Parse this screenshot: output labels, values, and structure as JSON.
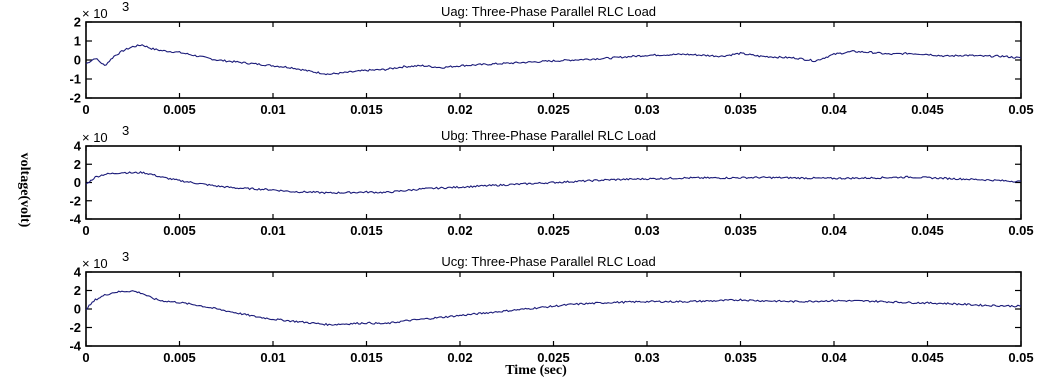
{
  "colors": {
    "signal": "#1c1c7a",
    "axis": "#000000",
    "background": "#ffffff"
  },
  "xlabel": "Time (sec)",
  "ylabel": "voltage(volt)",
  "chart_data": [
    {
      "type": "line",
      "title": "Uag: Three-Phase Parallel RLC Load",
      "multiplier_label": "× 10",
      "multiplier_exp": "3",
      "xlim": [
        0,
        0.05
      ],
      "ylim": [
        -2,
        2
      ],
      "x_ticks": [
        "0",
        "0.005",
        "0.01",
        "0.015",
        "0.02",
        "0.025",
        "0.03",
        "0.035",
        "0.04",
        "0.045",
        "0.05"
      ],
      "y_ticks": [
        "2",
        "1",
        "0",
        "-1",
        "-2"
      ],
      "y_tick_values": [
        2,
        1,
        0,
        -1,
        -2
      ],
      "series": [
        {
          "x": [
            0,
            0.0005,
            0.001,
            0.0015,
            0.002,
            0.0025,
            0.003,
            0.0035,
            0.004,
            0.005,
            0.006,
            0.007,
            0.008,
            0.009,
            0.01,
            0.011,
            0.012,
            0.013,
            0.014,
            0.015,
            0.016,
            0.017,
            0.018,
            0.019,
            0.02,
            0.022,
            0.024,
            0.026,
            0.028,
            0.03,
            0.032,
            0.034,
            0.035,
            0.036,
            0.038,
            0.039,
            0.04,
            0.041,
            0.042,
            0.043,
            0.044,
            0.045,
            0.046,
            0.047,
            0.048,
            0.049,
            0.05
          ],
          "y": [
            -0.2,
            0.1,
            -0.3,
            0.2,
            0.5,
            0.7,
            0.8,
            0.6,
            0.5,
            0.4,
            0.2,
            0.0,
            -0.1,
            -0.2,
            -0.3,
            -0.4,
            -0.6,
            -0.75,
            -0.65,
            -0.55,
            -0.5,
            -0.35,
            -0.3,
            -0.4,
            -0.3,
            -0.2,
            -0.1,
            0.0,
            0.1,
            0.25,
            0.3,
            0.2,
            0.35,
            0.2,
            0.1,
            -0.05,
            0.3,
            0.45,
            0.4,
            0.3,
            0.35,
            0.3,
            0.2,
            0.25,
            0.2,
            0.2,
            0.1
          ]
        }
      ]
    },
    {
      "type": "line",
      "title": "Ubg: Three-Phase Parallel RLC Load",
      "multiplier_label": "× 10",
      "multiplier_exp": "3",
      "xlim": [
        0,
        0.05
      ],
      "ylim": [
        -4,
        4
      ],
      "x_ticks": [
        "0",
        "0.005",
        "0.01",
        "0.015",
        "0.02",
        "0.025",
        "0.03",
        "0.035",
        "0.04",
        "0.045",
        "0.05"
      ],
      "y_ticks": [
        "4",
        "2",
        "0",
        "-2",
        "-4"
      ],
      "y_tick_values": [
        4,
        2,
        0,
        -2,
        -4
      ],
      "series": [
        {
          "x": [
            0,
            0.0005,
            0.001,
            0.0015,
            0.002,
            0.0025,
            0.003,
            0.0035,
            0.004,
            0.005,
            0.006,
            0.007,
            0.008,
            0.009,
            0.01,
            0.011,
            0.012,
            0.013,
            0.014,
            0.015,
            0.016,
            0.017,
            0.018,
            0.019,
            0.02,
            0.022,
            0.024,
            0.026,
            0.028,
            0.03,
            0.032,
            0.034,
            0.036,
            0.038,
            0.04,
            0.042,
            0.044,
            0.046,
            0.048,
            0.049,
            0.05
          ],
          "y": [
            -0.2,
            0.6,
            0.9,
            1.0,
            1.1,
            1.05,
            1.1,
            0.9,
            0.6,
            0.2,
            -0.1,
            -0.4,
            -0.6,
            -0.7,
            -0.8,
            -1.0,
            -1.05,
            -1.15,
            -1.1,
            -1.05,
            -1.1,
            -0.9,
            -0.7,
            -0.6,
            -0.5,
            -0.3,
            -0.1,
            0.1,
            0.3,
            0.4,
            0.5,
            0.5,
            0.55,
            0.5,
            0.45,
            0.5,
            0.6,
            0.45,
            0.3,
            0.2,
            0.1
          ]
        }
      ]
    },
    {
      "type": "line",
      "title": "Ucg: Three-Phase Parallel RLC Load",
      "multiplier_label": "× 10",
      "multiplier_exp": "3",
      "xlim": [
        0,
        0.05
      ],
      "ylim": [
        -4,
        4
      ],
      "x_ticks": [
        "0",
        "0.005",
        "0.01",
        "0.015",
        "0.02",
        "0.025",
        "0.03",
        "0.035",
        "0.04",
        "0.045",
        "0.05"
      ],
      "y_ticks": [
        "4",
        "2",
        "0",
        "-2",
        "-4"
      ],
      "y_tick_values": [
        4,
        2,
        0,
        -2,
        -4
      ],
      "series": [
        {
          "x": [
            0,
            0.0005,
            0.001,
            0.0015,
            0.002,
            0.0025,
            0.003,
            0.0035,
            0.004,
            0.005,
            0.006,
            0.007,
            0.008,
            0.009,
            0.01,
            0.011,
            0.012,
            0.013,
            0.014,
            0.015,
            0.016,
            0.017,
            0.018,
            0.019,
            0.02,
            0.022,
            0.024,
            0.026,
            0.028,
            0.03,
            0.032,
            0.034,
            0.035,
            0.036,
            0.038,
            0.04,
            0.042,
            0.044,
            0.046,
            0.048,
            0.05
          ],
          "y": [
            0.0,
            1.0,
            1.5,
            1.8,
            1.9,
            1.95,
            1.7,
            1.2,
            0.9,
            0.7,
            0.4,
            0.0,
            -0.4,
            -0.8,
            -1.1,
            -1.3,
            -1.5,
            -1.7,
            -1.6,
            -1.5,
            -1.6,
            -1.3,
            -1.1,
            -0.9,
            -0.7,
            -0.3,
            0.1,
            0.5,
            0.7,
            0.8,
            0.8,
            0.9,
            1.0,
            0.9,
            0.8,
            0.9,
            0.85,
            0.7,
            0.6,
            0.4,
            0.3
          ]
        }
      ]
    }
  ]
}
